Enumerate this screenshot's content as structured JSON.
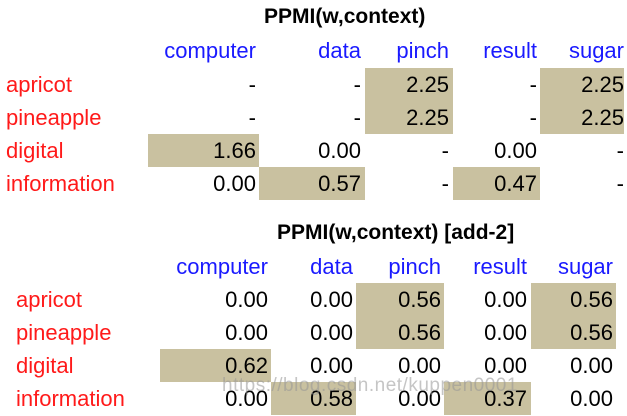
{
  "colors": {
    "column_header": "#1a1aff",
    "row_header": "#ff1a1a",
    "shade": "#c9c1a0"
  },
  "table1": {
    "title": "PPMI(w,context)",
    "columns": [
      "computer",
      "data",
      "pinch",
      "result",
      "sugar"
    ],
    "rows": [
      {
        "word": "apricot",
        "values": [
          "-",
          "-",
          "2.25",
          "-",
          "2.25"
        ],
        "shaded": [
          false,
          false,
          true,
          false,
          true
        ]
      },
      {
        "word": "pineapple",
        "values": [
          "-",
          "-",
          "2.25",
          "-",
          "2.25"
        ],
        "shaded": [
          false,
          false,
          true,
          false,
          true
        ]
      },
      {
        "word": "digital",
        "values": [
          "1.66",
          "0.00",
          "-",
          "0.00",
          "-"
        ],
        "shaded": [
          true,
          false,
          false,
          false,
          false
        ]
      },
      {
        "word": "information",
        "values": [
          "0.00",
          "0.57",
          "-",
          "0.47",
          "-"
        ],
        "shaded": [
          false,
          true,
          false,
          true,
          false
        ]
      }
    ]
  },
  "table2": {
    "title": "PPMI(w,context) [add-2]",
    "columns": [
      "computer",
      "data",
      "pinch",
      "result",
      "sugar"
    ],
    "rows": [
      {
        "word": "apricot",
        "values": [
          "0.00",
          "0.00",
          "0.56",
          "0.00",
          "0.56"
        ],
        "shaded": [
          false,
          false,
          true,
          false,
          true
        ]
      },
      {
        "word": "pineapple",
        "values": [
          "0.00",
          "0.00",
          "0.56",
          "0.00",
          "0.56"
        ],
        "shaded": [
          false,
          false,
          true,
          false,
          true
        ]
      },
      {
        "word": "digital",
        "values": [
          "0.62",
          "0.00",
          "0.00",
          "0.00",
          "0.00"
        ],
        "shaded": [
          true,
          false,
          false,
          false,
          false
        ]
      },
      {
        "word": "information",
        "values": [
          "0.00",
          "0.58",
          "0.00",
          "0.37",
          "0.00"
        ],
        "shaded": [
          false,
          true,
          false,
          true,
          false
        ]
      }
    ]
  },
  "watermark": "https://blog.csdn.net/kuppen0001"
}
